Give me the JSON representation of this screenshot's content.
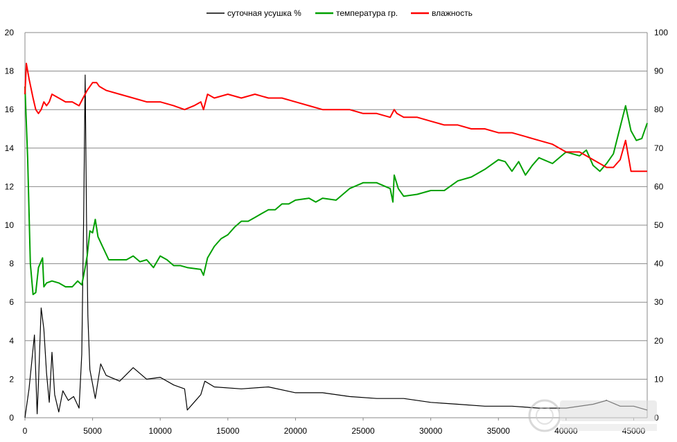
{
  "chart_data": {
    "type": "line",
    "title": "",
    "xlabel": "",
    "ylabel": "",
    "xlim": [
      0,
      46000
    ],
    "ylim_left": [
      0,
      20
    ],
    "ylim_right": [
      0,
      100
    ],
    "x_ticks": [
      0,
      5000,
      10000,
      15000,
      20000,
      25000,
      30000,
      35000,
      40000,
      45000
    ],
    "y_left_ticks": [
      0,
      2,
      4,
      6,
      8,
      10,
      12,
      14,
      16,
      18,
      20
    ],
    "y_right_ticks": [
      0,
      10,
      20,
      30,
      40,
      50,
      60,
      70,
      80,
      90,
      100
    ],
    "grid": "horizontal",
    "legend_position": "top",
    "series": [
      {
        "name": "суточная усушка %",
        "axis": "left",
        "color": "#000000",
        "points": [
          [
            0,
            0
          ],
          [
            300,
            1.5
          ],
          [
            700,
            4.3
          ],
          [
            900,
            0.2
          ],
          [
            1000,
            1.8
          ],
          [
            1200,
            5.7
          ],
          [
            1400,
            4.6
          ],
          [
            1600,
            2.3
          ],
          [
            1800,
            0.8
          ],
          [
            2000,
            3.4
          ],
          [
            2200,
            1.2
          ],
          [
            2500,
            0.3
          ],
          [
            2800,
            1.4
          ],
          [
            3200,
            0.9
          ],
          [
            3600,
            1.1
          ],
          [
            4000,
            0.5
          ],
          [
            4200,
            3.3
          ],
          [
            4350,
            10.9
          ],
          [
            4450,
            17.8
          ],
          [
            4550,
            10.5
          ],
          [
            4650,
            5.3
          ],
          [
            4800,
            2.5
          ],
          [
            5200,
            1.0
          ],
          [
            5600,
            2.8
          ],
          [
            6000,
            2.2
          ],
          [
            7000,
            1.9
          ],
          [
            8000,
            2.6
          ],
          [
            9000,
            2.0
          ],
          [
            10000,
            2.1
          ],
          [
            11000,
            1.7
          ],
          [
            11800,
            1.5
          ],
          [
            12000,
            0.4
          ],
          [
            12500,
            0.8
          ],
          [
            13000,
            1.2
          ],
          [
            13300,
            1.9
          ],
          [
            14000,
            1.6
          ],
          [
            16000,
            1.5
          ],
          [
            18000,
            1.6
          ],
          [
            20000,
            1.3
          ],
          [
            22000,
            1.3
          ],
          [
            24000,
            1.1
          ],
          [
            26000,
            1.0
          ],
          [
            28000,
            1.0
          ],
          [
            30000,
            0.8
          ],
          [
            32000,
            0.7
          ],
          [
            34000,
            0.6
          ],
          [
            36000,
            0.6
          ],
          [
            38000,
            0.5
          ],
          [
            40000,
            0.5
          ],
          [
            42000,
            0.7
          ],
          [
            43000,
            0.9
          ],
          [
            44000,
            0.6
          ],
          [
            45000,
            0.6
          ],
          [
            46000,
            0.4
          ]
        ]
      },
      {
        "name": "температура гр.",
        "axis": "left",
        "color": "#00a000",
        "points": [
          [
            0,
            17.2
          ],
          [
            200,
            13.5
          ],
          [
            400,
            8.0
          ],
          [
            600,
            6.4
          ],
          [
            800,
            6.5
          ],
          [
            1000,
            7.8
          ],
          [
            1300,
            8.3
          ],
          [
            1400,
            6.8
          ],
          [
            1600,
            7.0
          ],
          [
            2000,
            7.1
          ],
          [
            2500,
            7.0
          ],
          [
            3000,
            6.8
          ],
          [
            3500,
            6.8
          ],
          [
            3900,
            7.1
          ],
          [
            4200,
            6.9
          ],
          [
            4400,
            7.6
          ],
          [
            4600,
            8.4
          ],
          [
            4800,
            9.7
          ],
          [
            5000,
            9.6
          ],
          [
            5200,
            10.3
          ],
          [
            5400,
            9.4
          ],
          [
            5800,
            8.8
          ],
          [
            6200,
            8.2
          ],
          [
            7000,
            8.2
          ],
          [
            7500,
            8.2
          ],
          [
            8000,
            8.4
          ],
          [
            8500,
            8.1
          ],
          [
            9000,
            8.2
          ],
          [
            9500,
            7.8
          ],
          [
            10000,
            8.4
          ],
          [
            10500,
            8.2
          ],
          [
            11000,
            7.9
          ],
          [
            11500,
            7.9
          ],
          [
            12000,
            7.8
          ],
          [
            13000,
            7.7
          ],
          [
            13200,
            7.4
          ],
          [
            13500,
            8.3
          ],
          [
            14000,
            8.9
          ],
          [
            14500,
            9.3
          ],
          [
            15000,
            9.5
          ],
          [
            15500,
            9.9
          ],
          [
            16000,
            10.2
          ],
          [
            16500,
            10.2
          ],
          [
            17000,
            10.4
          ],
          [
            17500,
            10.6
          ],
          [
            18000,
            10.8
          ],
          [
            18500,
            10.8
          ],
          [
            19000,
            11.1
          ],
          [
            19500,
            11.1
          ],
          [
            20000,
            11.3
          ],
          [
            21000,
            11.4
          ],
          [
            21500,
            11.2
          ],
          [
            22000,
            11.4
          ],
          [
            23000,
            11.3
          ],
          [
            24000,
            11.9
          ],
          [
            25000,
            12.2
          ],
          [
            26000,
            12.2
          ],
          [
            27000,
            11.9
          ],
          [
            27200,
            11.2
          ],
          [
            27300,
            12.6
          ],
          [
            27600,
            11.9
          ],
          [
            28000,
            11.5
          ],
          [
            29000,
            11.6
          ],
          [
            30000,
            11.8
          ],
          [
            31000,
            11.8
          ],
          [
            32000,
            12.3
          ],
          [
            33000,
            12.5
          ],
          [
            34000,
            12.9
          ],
          [
            35000,
            13.4
          ],
          [
            35500,
            13.3
          ],
          [
            36000,
            12.8
          ],
          [
            36500,
            13.3
          ],
          [
            37000,
            12.6
          ],
          [
            37500,
            13.1
          ],
          [
            38000,
            13.5
          ],
          [
            39000,
            13.2
          ],
          [
            40000,
            13.8
          ],
          [
            41000,
            13.6
          ],
          [
            41500,
            13.9
          ],
          [
            42000,
            13.1
          ],
          [
            42500,
            12.8
          ],
          [
            43000,
            13.2
          ],
          [
            43500,
            13.7
          ],
          [
            44000,
            15.1
          ],
          [
            44400,
            16.2
          ],
          [
            44800,
            14.9
          ],
          [
            45200,
            14.4
          ],
          [
            45600,
            14.5
          ],
          [
            46000,
            15.3
          ]
        ]
      },
      {
        "name": "влажность",
        "axis": "right",
        "color": "#ff0000",
        "points": [
          [
            0,
            84
          ],
          [
            100,
            92
          ],
          [
            300,
            88
          ],
          [
            600,
            83
          ],
          [
            800,
            80
          ],
          [
            1000,
            79
          ],
          [
            1200,
            80
          ],
          [
            1400,
            82
          ],
          [
            1600,
            81
          ],
          [
            1800,
            82
          ],
          [
            2000,
            84
          ],
          [
            2500,
            83
          ],
          [
            3000,
            82
          ],
          [
            3500,
            82
          ],
          [
            4000,
            81
          ],
          [
            4300,
            83
          ],
          [
            4600,
            85
          ],
          [
            5000,
            87
          ],
          [
            5300,
            87
          ],
          [
            5500,
            86
          ],
          [
            6000,
            85
          ],
          [
            7000,
            84
          ],
          [
            8000,
            83
          ],
          [
            9000,
            82
          ],
          [
            10000,
            82
          ],
          [
            11000,
            81
          ],
          [
            11800,
            80
          ],
          [
            12500,
            81
          ],
          [
            13000,
            82
          ],
          [
            13200,
            80
          ],
          [
            13500,
            84
          ],
          [
            14000,
            83
          ],
          [
            15000,
            84
          ],
          [
            16000,
            83
          ],
          [
            17000,
            84
          ],
          [
            18000,
            83
          ],
          [
            19000,
            83
          ],
          [
            20000,
            82
          ],
          [
            21000,
            81
          ],
          [
            22000,
            80
          ],
          [
            23000,
            80
          ],
          [
            24000,
            80
          ],
          [
            25000,
            79
          ],
          [
            26000,
            79
          ],
          [
            27000,
            78
          ],
          [
            27300,
            80
          ],
          [
            27500,
            79
          ],
          [
            28000,
            78
          ],
          [
            29000,
            78
          ],
          [
            30000,
            77
          ],
          [
            31000,
            76
          ],
          [
            32000,
            76
          ],
          [
            33000,
            75
          ],
          [
            34000,
            75
          ],
          [
            35000,
            74
          ],
          [
            36000,
            74
          ],
          [
            37000,
            73
          ],
          [
            38000,
            72
          ],
          [
            39000,
            71
          ],
          [
            40000,
            69
          ],
          [
            41000,
            69
          ],
          [
            42000,
            67
          ],
          [
            43000,
            65
          ],
          [
            43500,
            65
          ],
          [
            44000,
            67
          ],
          [
            44400,
            72
          ],
          [
            44800,
            64
          ],
          [
            45200,
            64
          ],
          [
            45600,
            64
          ],
          [
            46000,
            64
          ]
        ]
      }
    ]
  }
}
